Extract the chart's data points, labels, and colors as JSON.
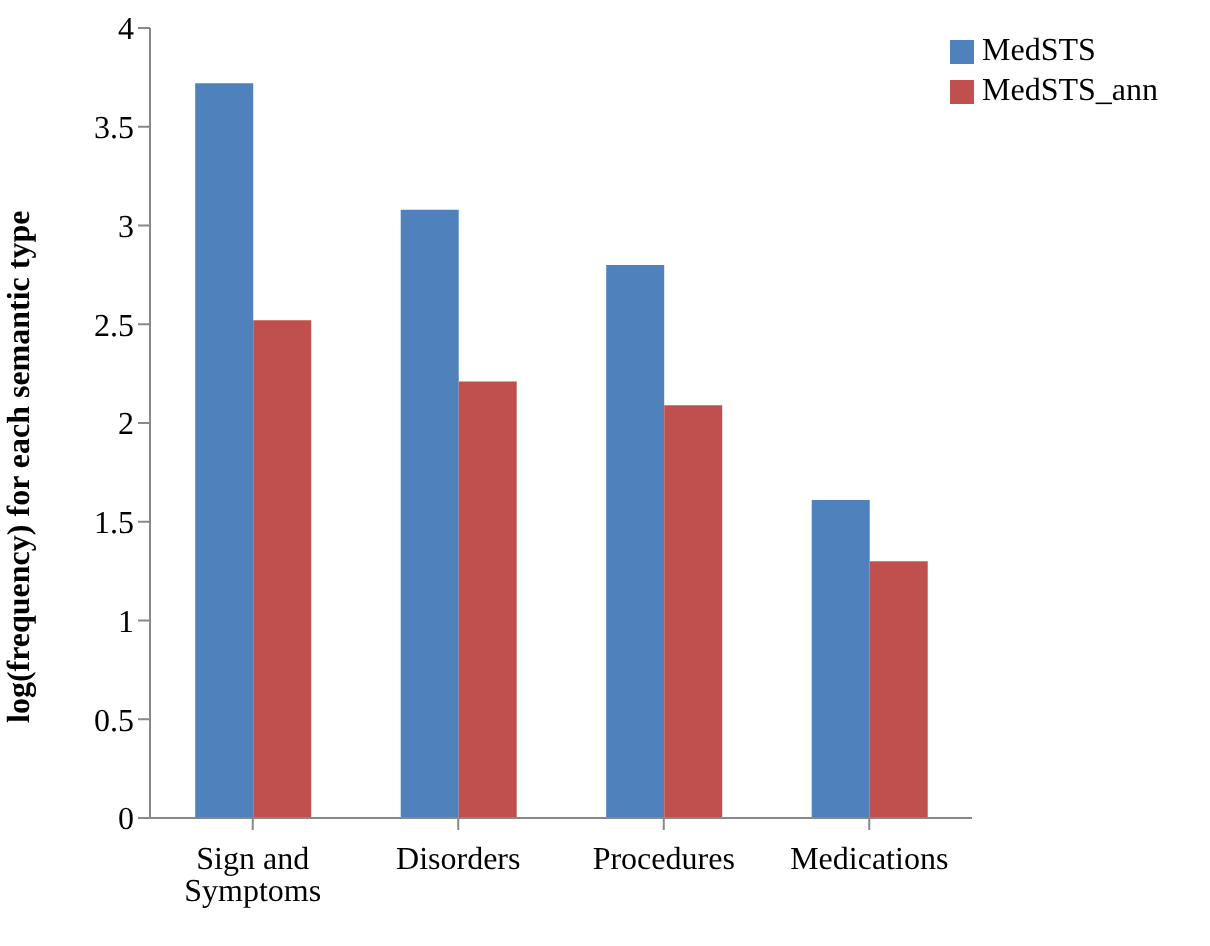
{
  "chart_data": {
    "type": "bar",
    "ylabel": "log(frequency) for each semantic type",
    "categories": [
      "Sign and Symptoms",
      "Disorders",
      "Procedures",
      "Medications"
    ],
    "series": [
      {
        "name": "MedSTS",
        "color": "#4f81bd",
        "values": [
          3.72,
          3.08,
          2.8,
          1.61
        ]
      },
      {
        "name": "MedSTS_ann",
        "color": "#c0504d",
        "values": [
          2.52,
          2.21,
          2.09,
          1.3
        ]
      }
    ],
    "ylim": [
      0,
      4
    ],
    "yticks": [
      0,
      0.5,
      1,
      1.5,
      2,
      2.5,
      3,
      3.5,
      4
    ],
    "grid": false,
    "legend": "top right"
  }
}
